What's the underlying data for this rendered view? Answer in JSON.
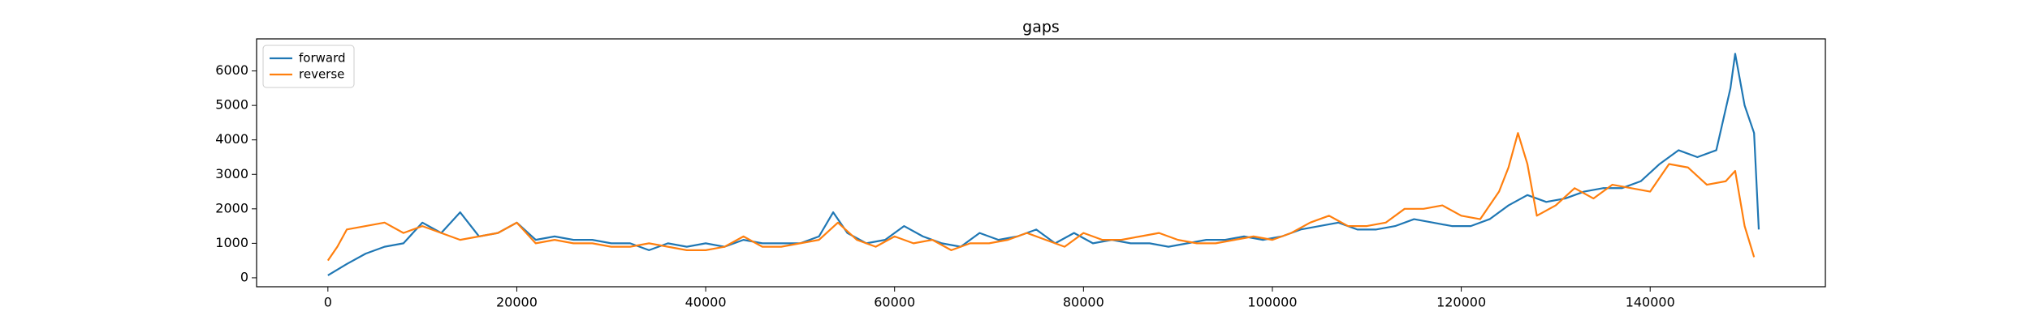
{
  "chart_data": {
    "type": "line",
    "title": "gaps",
    "xlim": [
      -7550,
      158550
    ],
    "ylim": [
      -260,
      6930
    ],
    "xticks": [
      0,
      20000,
      40000,
      60000,
      80000,
      100000,
      120000,
      140000
    ],
    "yticks": [
      0,
      1000,
      2000,
      3000,
      4000,
      5000,
      6000
    ],
    "legend": "upper left",
    "series": [
      {
        "name": "forward",
        "color": "#1f77b4",
        "x": [
          0,
          2000,
          4000,
          6000,
          8000,
          10000,
          12000,
          14000,
          16000,
          18000,
          20000,
          22000,
          24000,
          26000,
          28000,
          30000,
          32000,
          34000,
          36000,
          38000,
          40000,
          42000,
          44000,
          46000,
          48000,
          50000,
          52000,
          53500,
          55000,
          57000,
          59000,
          61000,
          63000,
          65000,
          67000,
          69000,
          71000,
          73000,
          75000,
          77000,
          79000,
          81000,
          83000,
          85000,
          87000,
          89000,
          91000,
          93000,
          95000,
          97000,
          99000,
          101000,
          103000,
          105000,
          107000,
          109000,
          111000,
          113000,
          115000,
          117000,
          119000,
          121000,
          123000,
          125000,
          127000,
          129000,
          131000,
          133000,
          135000,
          137000,
          139000,
          141000,
          143000,
          145000,
          147000,
          148500,
          149000,
          150000,
          151000,
          151500
        ],
        "values": [
          70,
          400,
          700,
          900,
          1000,
          1600,
          1300,
          1900,
          1200,
          1300,
          1600,
          1100,
          1200,
          1100,
          1100,
          1000,
          1000,
          800,
          1000,
          900,
          1000,
          900,
          1100,
          1000,
          1000,
          1000,
          1200,
          1900,
          1300,
          1000,
          1100,
          1500,
          1200,
          1000,
          900,
          1300,
          1100,
          1200,
          1400,
          1000,
          1300,
          1000,
          1100,
          1000,
          1000,
          900,
          1000,
          1100,
          1100,
          1200,
          1100,
          1200,
          1400,
          1500,
          1600,
          1400,
          1400,
          1500,
          1700,
          1600,
          1500,
          1500,
          1700,
          2100,
          2400,
          2200,
          2300,
          2500,
          2600,
          2600,
          2800,
          3300,
          3700,
          3500,
          3700,
          5500,
          6500,
          5000,
          4200,
          1400
        ]
      },
      {
        "name": "reverse",
        "color": "#ff7f0e",
        "x": [
          0,
          1000,
          2000,
          4000,
          6000,
          8000,
          10000,
          12000,
          14000,
          16000,
          18000,
          20000,
          22000,
          24000,
          26000,
          28000,
          30000,
          32000,
          34000,
          36000,
          38000,
          40000,
          42000,
          44000,
          46000,
          48000,
          50000,
          52000,
          54000,
          56000,
          58000,
          60000,
          62000,
          64000,
          66000,
          68000,
          70000,
          72000,
          74000,
          76000,
          78000,
          80000,
          82000,
          84000,
          86000,
          88000,
          90000,
          92000,
          94000,
          96000,
          98000,
          100000,
          102000,
          104000,
          106000,
          108000,
          110000,
          112000,
          114000,
          116000,
          118000,
          120000,
          122000,
          124000,
          125000,
          126000,
          127000,
          128000,
          130000,
          132000,
          134000,
          136000,
          138000,
          140000,
          142000,
          144000,
          146000,
          148000,
          149000,
          150000,
          151000
        ],
        "values": [
          500,
          900,
          1400,
          1500,
          1600,
          1300,
          1500,
          1300,
          1100,
          1200,
          1300,
          1600,
          1000,
          1100,
          1000,
          1000,
          900,
          900,
          1000,
          900,
          800,
          800,
          900,
          1200,
          900,
          900,
          1000,
          1100,
          1600,
          1100,
          900,
          1200,
          1000,
          1100,
          800,
          1000,
          1000,
          1100,
          1300,
          1100,
          900,
          1300,
          1100,
          1100,
          1200,
          1300,
          1100,
          1000,
          1000,
          1100,
          1200,
          1100,
          1300,
          1600,
          1800,
          1500,
          1500,
          1600,
          2000,
          2000,
          2100,
          1800,
          1700,
          2500,
          3200,
          4200,
          3300,
          1800,
          2100,
          2600,
          2300,
          2700,
          2600,
          2500,
          3300,
          3200,
          2700,
          2800,
          3100,
          1500,
          600
        ]
      }
    ]
  }
}
